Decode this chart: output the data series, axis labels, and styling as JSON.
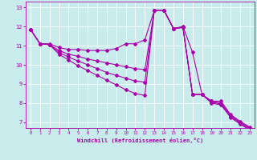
{
  "xlabel": "Windchill (Refroidissement éolien,°C)",
  "xlim": [
    -0.5,
    23.5
  ],
  "ylim": [
    6.7,
    13.3
  ],
  "yticks": [
    7,
    8,
    9,
    10,
    11,
    12,
    13
  ],
  "xticks": [
    0,
    1,
    2,
    3,
    4,
    5,
    6,
    7,
    8,
    9,
    10,
    11,
    12,
    13,
    14,
    15,
    16,
    17,
    18,
    19,
    20,
    21,
    22,
    23
  ],
  "bg_color": "#c8ecec",
  "line_color": "#aa00aa",
  "grid_color": "#ffffff",
  "lines": [
    [
      11.85,
      11.1,
      11.1,
      10.9,
      10.8,
      10.8,
      10.75,
      10.75,
      10.75,
      10.85,
      11.1,
      11.1,
      11.3,
      12.85,
      12.85,
      11.9,
      12.0,
      10.65,
      8.45,
      8.1,
      8.1,
      7.4,
      7.05,
      6.75
    ],
    [
      11.85,
      11.1,
      11.05,
      10.75,
      10.55,
      10.45,
      10.3,
      10.2,
      10.1,
      10.0,
      9.9,
      9.8,
      9.75,
      12.85,
      12.85,
      11.9,
      11.95,
      8.45,
      8.45,
      8.1,
      8.0,
      7.35,
      7.0,
      6.7
    ],
    [
      11.85,
      11.1,
      11.05,
      10.65,
      10.4,
      10.2,
      10.0,
      9.8,
      9.6,
      9.45,
      9.3,
      9.15,
      9.1,
      12.85,
      12.85,
      11.9,
      11.95,
      8.45,
      8.45,
      8.05,
      7.95,
      7.3,
      6.95,
      6.65
    ],
    [
      11.85,
      11.1,
      11.05,
      10.55,
      10.25,
      9.95,
      9.7,
      9.45,
      9.2,
      8.95,
      8.7,
      8.5,
      8.4,
      12.85,
      12.85,
      11.9,
      11.95,
      8.45,
      8.45,
      8.0,
      7.9,
      7.25,
      6.9,
      6.6
    ]
  ],
  "marker": "D",
  "markersize": 2,
  "linewidth": 0.8
}
